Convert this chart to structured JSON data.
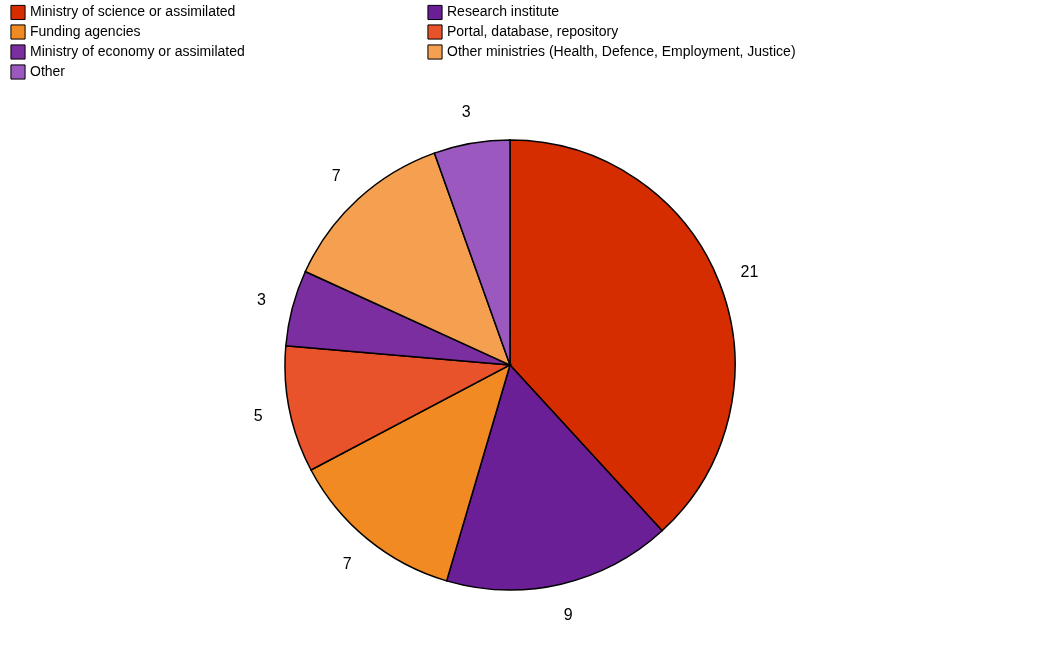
{
  "chart_data": {
    "type": "pie",
    "categories": [
      "Ministry of science or assimilated",
      "Research institute",
      "Funding agencies",
      "Portal, database, repository",
      "Ministry of economy or assimilated",
      "Other ministries (Health, Defence, Employment, Justice)",
      "Other"
    ],
    "values": [
      21,
      9,
      7,
      5,
      3,
      7,
      3
    ],
    "colors": [
      "#d62d00",
      "#6a1f96",
      "#f28a24",
      "#e8532c",
      "#7a2ea0",
      "#f5a050",
      "#9b59c0"
    ],
    "data_labels": true,
    "legend": "top"
  }
}
